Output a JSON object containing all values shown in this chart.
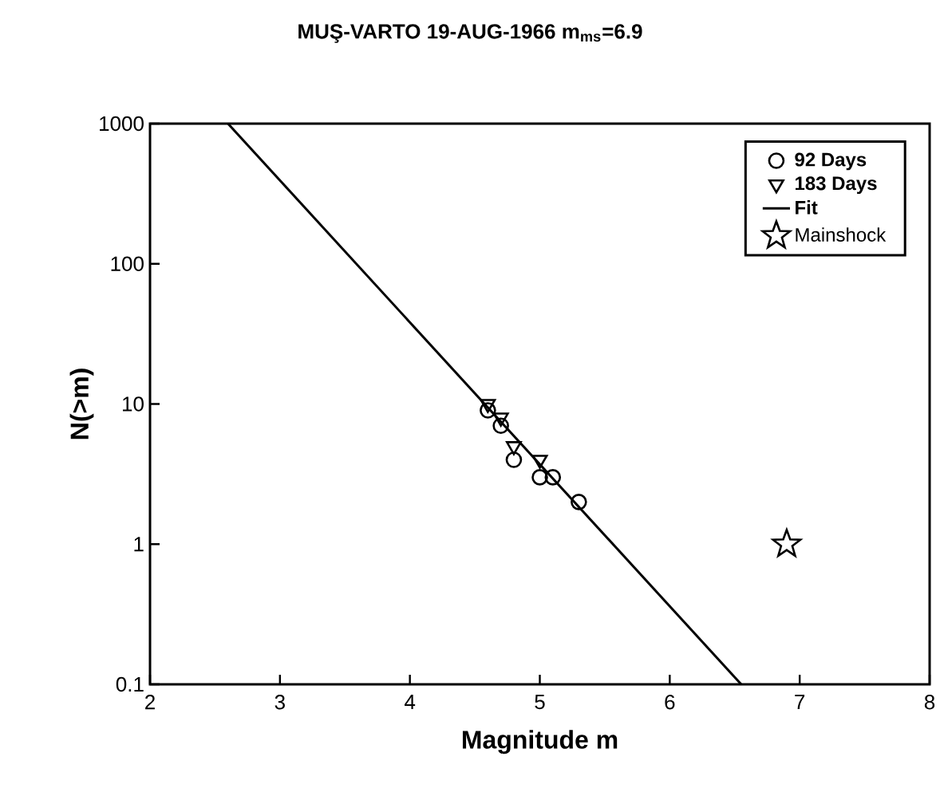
{
  "chart_data": {
    "type": "scatter",
    "title": "MUŞ-VARTO 19-AUG-1966  m$_{ms}$=6.9",
    "xlabel": "Magnitude m",
    "ylabel": "N(>m)",
    "log": "y",
    "xlim": [
      2,
      8
    ],
    "ylim": [
      0.1,
      1000
    ],
    "xticks": [
      2,
      3,
      4,
      5,
      6,
      7,
      8
    ],
    "yticks": [
      0.1,
      1,
      10,
      100,
      1000
    ],
    "grid": false,
    "legend": "top right",
    "series": [
      {
        "name": "92 Days",
        "marker": "circle",
        "color": "#000000",
        "x": [
          4.6,
          4.7,
          4.8,
          5.0,
          5.1,
          5.3
        ],
        "values": [
          9,
          7,
          4,
          3,
          3,
          2
        ]
      },
      {
        "name": "183 Days",
        "marker": "triangle",
        "color": "#000000",
        "x": [
          4.6,
          4.7,
          4.8,
          5.0
        ],
        "values": [
          10,
          8,
          5,
          4
        ]
      },
      {
        "name": "Fit",
        "type": "line",
        "line_style": "solid",
        "color": "#000000",
        "x": [
          2.6,
          6.55
        ],
        "values": [
          1000,
          0.1
        ]
      },
      {
        "name": "Mainshock",
        "marker": "star",
        "color": "#000000",
        "x": [
          6.9
        ],
        "values": [
          1
        ]
      }
    ]
  }
}
